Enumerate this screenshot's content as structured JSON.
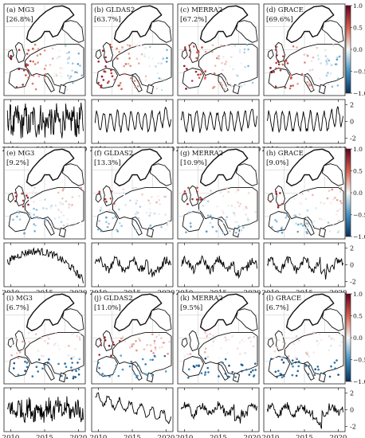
{
  "chart_data": {
    "type": "line",
    "description_rows": 3,
    "columns": 4,
    "x_ticks": [
      2010,
      2015,
      2020
    ],
    "xlim": [
      2009.0,
      2021.0
    ],
    "ts_ylim": [
      -2.6,
      2.6
    ],
    "ts_yticks": [
      2,
      0,
      -2
    ],
    "colorbar": {
      "ticks": [
        1.0,
        0.5,
        0.0,
        -0.5,
        -1.0
      ],
      "tick_labels": [
        "1.0",
        "0.5",
        "0.0",
        "−0.5",
        "−1.0"
      ],
      "range": [
        -1.0,
        1.0
      ],
      "colors": {
        "pos": "#67001f",
        "mid": "#f7f7f7",
        "neg": "#053061"
      }
    },
    "panels": [
      {
        "label": "(a) MG3",
        "percent": "[26.8%]",
        "row": 0,
        "col": 0,
        "pattern": "noisy_high",
        "map_pattern": "uk_west_red"
      },
      {
        "label": "(b) GLDAS2",
        "percent": "[63.7%]",
        "row": 0,
        "col": 1,
        "pattern": "smooth_wave",
        "map_pattern": "uk_west_red"
      },
      {
        "label": "(c) MERRA2",
        "percent": "[67.2%]",
        "row": 0,
        "col": 2,
        "pattern": "smooth_wave",
        "map_pattern": "uk_west_red"
      },
      {
        "label": "(d) GRACE",
        "percent": "[69.6%]",
        "row": 0,
        "col": 3,
        "pattern": "smooth_wave",
        "map_pattern": "uk_west_red"
      },
      {
        "label": "(e) MG3",
        "percent": "[9.2%]",
        "row": 1,
        "col": 0,
        "pattern": "arch",
        "map_pattern": "uk_red_south_blue"
      },
      {
        "label": "(f) GLDAS2",
        "percent": "[13.3%]",
        "row": 1,
        "col": 1,
        "pattern": "irregular",
        "map_pattern": "uk_red_south_blue"
      },
      {
        "label": "(g) MERRA2",
        "percent": "[10.9%]",
        "row": 1,
        "col": 2,
        "pattern": "irregular",
        "map_pattern": "uk_red_south_blue"
      },
      {
        "label": "(h) GRACE",
        "percent": "[9.0%]",
        "row": 1,
        "col": 3,
        "pattern": "irregular",
        "map_pattern": "uk_red_south_blue"
      },
      {
        "label": "(i) MG3",
        "percent": "[6.7%]",
        "row": 2,
        "col": 0,
        "pattern": "noisy_low",
        "map_pattern": "south_blue_center_red"
      },
      {
        "label": "(j) GLDAS2",
        "percent": "[11.0%]",
        "row": 2,
        "col": 1,
        "pattern": "decline",
        "map_pattern": "west_red_south_blue"
      },
      {
        "label": "(k) MERRA2",
        "percent": "[9.5%]",
        "row": 2,
        "col": 2,
        "pattern": "irregular",
        "map_pattern": "south_blue_center_red"
      },
      {
        "label": "(l) GRACE",
        "percent": "[6.7%]",
        "row": 2,
        "col": 3,
        "pattern": "dip",
        "map_pattern": "south_blue_center_red"
      }
    ]
  }
}
